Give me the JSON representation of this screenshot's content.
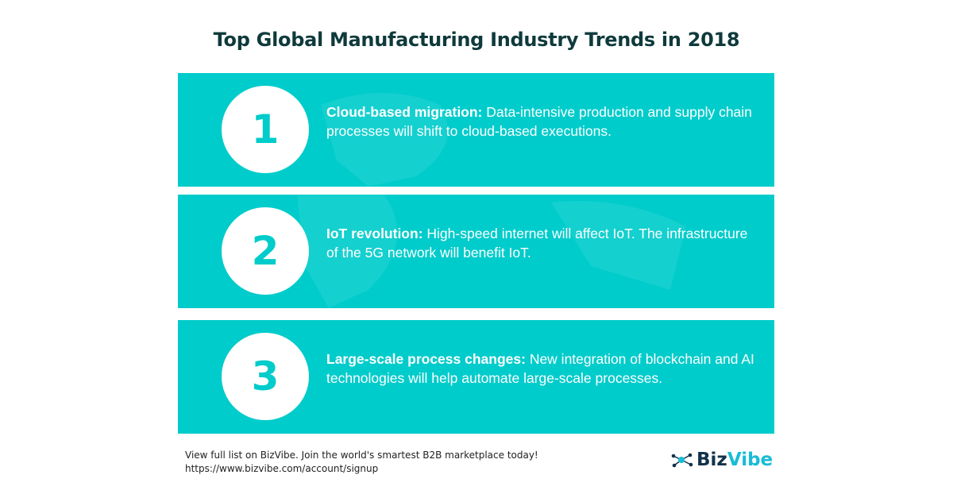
{
  "title": "Top Global Manufacturing Industry Trends in 2018",
  "trends": [
    {
      "number": "1",
      "heading": "Cloud-based migration:",
      "body": " Data-intensive production and supply chain processes will shift to cloud-based executions."
    },
    {
      "number": "2",
      "heading": "IoT revolution:",
      "body": " High-speed internet will affect IoT. The infrastructure of the 5G network will benefit IoT."
    },
    {
      "number": "3",
      "heading": "Large-scale process changes:",
      "body": " New integration of blockchain and AI technologies will help automate large-scale processes."
    }
  ],
  "footer": {
    "line1": "View full list on BizVibe. Join the world's smartest B2B marketplace today!",
    "line2": "https://www.bizvibe.com/account/signup"
  },
  "logo": {
    "part1": "Biz",
    "part2": "Vibe",
    "icon": "network-nodes-icon"
  },
  "colors": {
    "accent": "#00cccb",
    "title": "#0f3a3c",
    "logo_dark": "#12324a",
    "logo_light": "#18bcd6"
  }
}
